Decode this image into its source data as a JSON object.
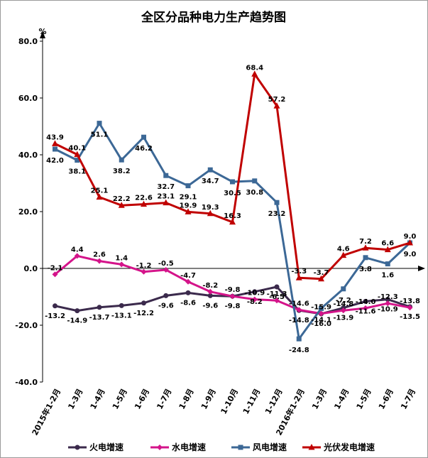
{
  "chart_data": {
    "type": "line",
    "title": "全区分品种电力生产趋势图",
    "unit": "%",
    "ylim": [
      -40,
      80
    ],
    "yticks": [
      "80.0",
      "60.0",
      "40.0",
      "20.0",
      "0.0",
      "-20.0",
      "-40.0"
    ],
    "categories": [
      "2015年1-2月",
      "1-3月",
      "1-4月",
      "1-5月",
      "1-6月",
      "1-7月",
      "1-8月",
      "1-9月",
      "1-10月",
      "1-11月",
      "1-12月",
      "2016年1-2月",
      "1-3月",
      "1-4月",
      "1-5月",
      "1-6月",
      "1-7月"
    ],
    "legend_position": "bottom",
    "series": [
      {
        "name": "火电增速",
        "color": "#3b2a4c",
        "marker": "circle",
        "values": [
          -13.2,
          -14.9,
          -13.7,
          -13.1,
          -12.2,
          -9.6,
          -8.6,
          -9.6,
          -9.8,
          -8.2,
          -6.5,
          -14.8,
          -16.0,
          -13.9,
          -11.6,
          -10.9,
          -13.5
        ]
      },
      {
        "name": "水电增速",
        "color": "#d4148a",
        "marker": "diamond",
        "values": [
          -2.1,
          4.4,
          2.6,
          1.4,
          -1.2,
          -0.5,
          -4.7,
          -8.2,
          -9.8,
          -10.9,
          -11.3,
          -14.6,
          -15.9,
          -14.8,
          -14.0,
          -12.3,
          -13.8
        ]
      },
      {
        "name": "风电增速",
        "color": "#3c6896",
        "marker": "square",
        "values": [
          42.0,
          38.1,
          51.1,
          38.2,
          46.2,
          32.7,
          29.1,
          34.7,
          30.5,
          30.8,
          23.2,
          -24.8,
          -14.1,
          -7.2,
          3.8,
          1.6,
          9.0
        ]
      },
      {
        "name": "光伏发电增速",
        "color": "#c00000",
        "marker": "triangle",
        "values": [
          43.9,
          40.1,
          25.1,
          22.2,
          22.6,
          23.1,
          19.9,
          19.3,
          16.3,
          68.4,
          57.2,
          -3.3,
          -3.7,
          4.6,
          7.2,
          6.6,
          9.0
        ]
      }
    ]
  }
}
